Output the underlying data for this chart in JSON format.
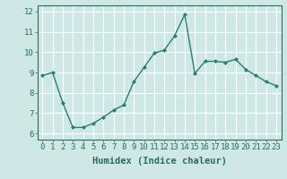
{
  "x": [
    0,
    1,
    2,
    3,
    4,
    5,
    6,
    7,
    8,
    9,
    10,
    11,
    12,
    13,
    14,
    15,
    16,
    17,
    18,
    19,
    20,
    21,
    22,
    23
  ],
  "y": [
    8.85,
    9.0,
    7.5,
    6.3,
    6.3,
    6.5,
    6.8,
    7.15,
    7.4,
    8.55,
    9.25,
    9.95,
    10.1,
    10.8,
    11.85,
    8.95,
    9.55,
    9.55,
    9.5,
    9.65,
    9.15,
    8.85,
    8.55,
    8.35
  ],
  "line_color": "#2e7d6e",
  "marker": "D",
  "marker_size": 2,
  "bg_color": "#cde8e5",
  "grid_color": "#ffffff",
  "xlabel": "Humidex (Indice chaleur)",
  "ylim": [
    5.7,
    12.3
  ],
  "xlim": [
    -0.5,
    23.5
  ],
  "yticks": [
    6,
    7,
    8,
    9,
    10,
    11,
    12
  ],
  "xticks": [
    0,
    1,
    2,
    3,
    4,
    5,
    6,
    7,
    8,
    9,
    10,
    11,
    12,
    13,
    14,
    15,
    16,
    17,
    18,
    19,
    20,
    21,
    22,
    23
  ],
  "tick_color": "#2e6b5e",
  "label_color": "#2e6b5e",
  "xlabel_fontsize": 7.5,
  "tick_fontsize": 6.5,
  "linewidth": 1.0
}
